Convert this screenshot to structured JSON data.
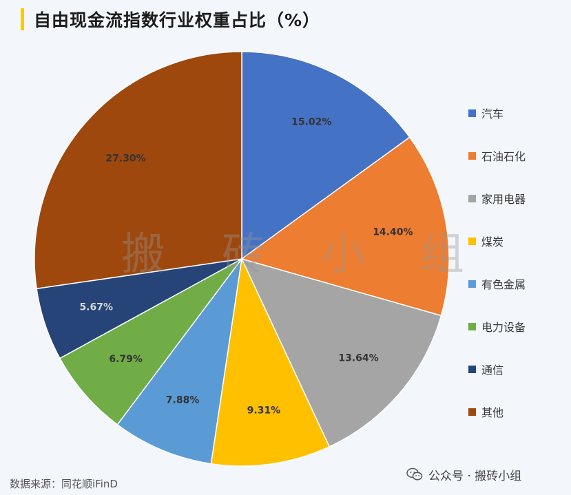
{
  "title": "自由现金流指数行业权重占比（%）",
  "source": "数据来源：同花顺iFinD",
  "brand": {
    "text": "公众号 · 搬砖小组",
    "icon": "wechat-icon"
  },
  "watermark": [
    "搬",
    "砖",
    "小",
    "组"
  ],
  "chart_data": {
    "type": "pie",
    "title": "自由现金流指数行业权重占比（%）",
    "start_angle": "12 o'clock",
    "direction": "clockwise",
    "legend_position": "right",
    "slices": [
      {
        "label": "汽车",
        "value": 15.02,
        "display": "15.02%",
        "color": "#4472c4"
      },
      {
        "label": "石油石化",
        "value": 14.4,
        "display": "14.40%",
        "color": "#ed7d31"
      },
      {
        "label": "家用电器",
        "value": 13.64,
        "display": "13.64%",
        "color": "#a5a5a5"
      },
      {
        "label": "煤炭",
        "value": 9.31,
        "display": "9.31%",
        "color": "#ffc000"
      },
      {
        "label": "有色金属",
        "value": 7.88,
        "display": "7.88%",
        "color": "#5b9bd5"
      },
      {
        "label": "电力设备",
        "value": 6.79,
        "display": "6.79%",
        "color": "#70ad47"
      },
      {
        "label": "通信",
        "value": 5.67,
        "display": "5.67%",
        "color": "#264478"
      },
      {
        "label": "其他",
        "value": 27.3,
        "display": "27.30%",
        "color": "#9e480e"
      }
    ]
  }
}
